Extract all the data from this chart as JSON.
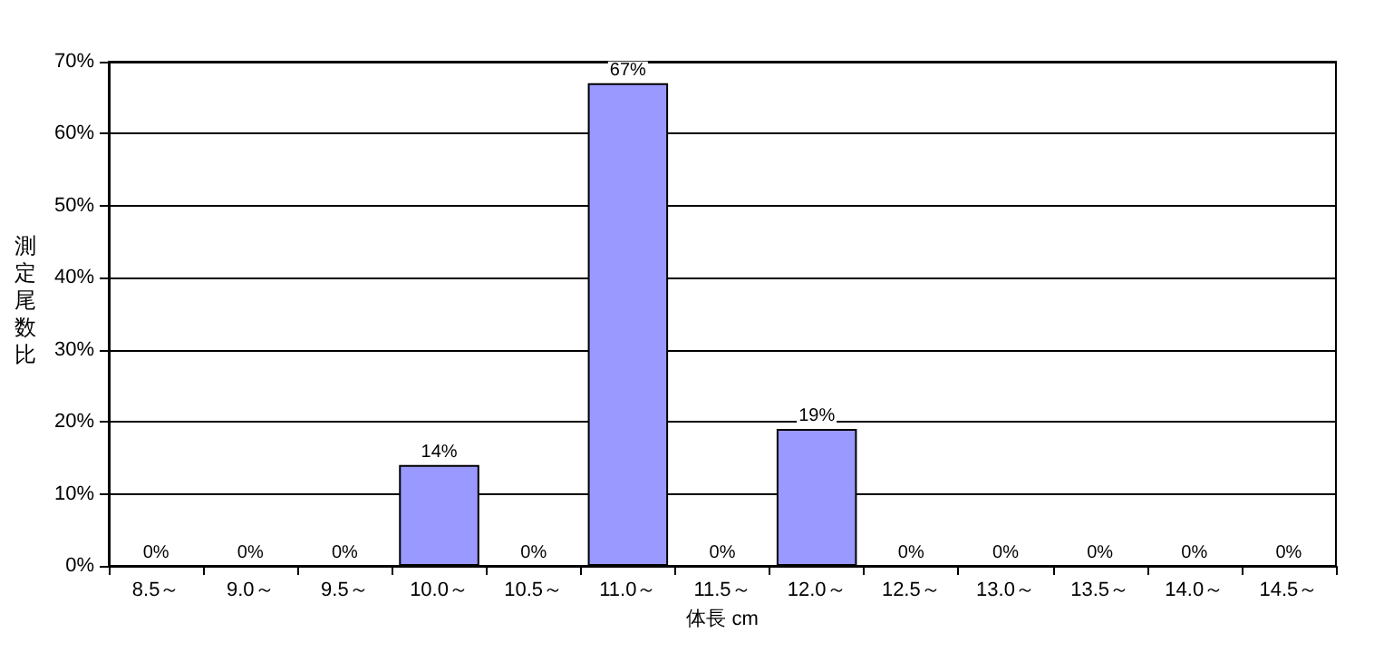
{
  "chart_data": {
    "type": "bar",
    "xlabel": "体長 cm",
    "ylabel": "測定尾数比",
    "categories": [
      "8.5～",
      "9.0～",
      "9.5～",
      "10.0～",
      "10.5～",
      "11.0～",
      "11.5～",
      "12.0～",
      "12.5～",
      "13.0～",
      "13.5～",
      "14.0～",
      "14.5～"
    ],
    "values": [
      0,
      0,
      0,
      14,
      0,
      67,
      0,
      19,
      0,
      0,
      0,
      0,
      0
    ],
    "value_labels": [
      "0%",
      "0%",
      "0%",
      "14%",
      "0%",
      "67%",
      "0%",
      "19%",
      "0%",
      "0%",
      "0%",
      "0%",
      "0%"
    ],
    "color": "#9999ff",
    "ylim": [
      0,
      70
    ],
    "yticks": [
      {
        "value": 0,
        "label": "0%"
      },
      {
        "value": 10,
        "label": "10%"
      },
      {
        "value": 20,
        "label": "20%"
      },
      {
        "value": 30,
        "label": "30%"
      },
      {
        "value": 40,
        "label": "40%"
      },
      {
        "value": 50,
        "label": "50%"
      },
      {
        "value": 60,
        "label": "60%"
      },
      {
        "value": 70,
        "label": "70%"
      }
    ],
    "grid": "y"
  }
}
